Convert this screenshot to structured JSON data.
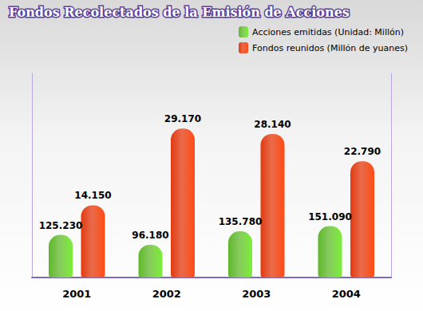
{
  "chart_data": {
    "type": "bar",
    "title": "Fondos Recolectados de la Emisión de Acciones",
    "categories": [
      "2001",
      "2002",
      "2003",
      "2004"
    ],
    "series": [
      {
        "name": "Acciones emitidas (Unidad: Millón)",
        "color": "#5fb82a",
        "values": [
          125.23,
          96.18,
          135.78,
          151.09
        ],
        "value_labels": [
          "125.230",
          "96.180",
          "135.780",
          "151.090"
        ]
      },
      {
        "name": "Fondos reunidos (Millón de yuanes)",
        "color": "#e23a10",
        "axis": "y2",
        "values": [
          14.15,
          29.17,
          28.14,
          22.79
        ],
        "value_labels": [
          "14.150",
          "29.170",
          "28.140",
          "22.790"
        ]
      }
    ],
    "ylim": [
      0,
      600
    ],
    "y2lim": [
      0,
      40
    ],
    "legend": "top-right",
    "data_labels": true,
    "tick_labels": "x",
    "grid": false
  }
}
